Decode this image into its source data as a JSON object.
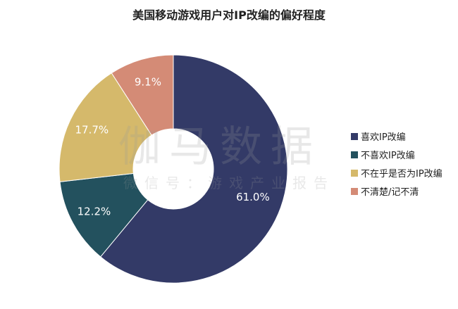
{
  "chart_data": {
    "type": "pie",
    "title": "美国移动游戏用户对IP改编的偏好程度",
    "categories": [
      "喜欢IP改编",
      "不喜欢IP改编",
      "不在乎是否为IP改编",
      "不清楚/记不清"
    ],
    "values": [
      61.0,
      12.2,
      17.7,
      9.1
    ],
    "value_labels": [
      "61.0%",
      "12.2%",
      "17.7%",
      "9.1%"
    ],
    "colors": [
      "#333a67",
      "#23515e",
      "#d5b96b",
      "#d48b76"
    ],
    "donut": true,
    "legend_position": "right"
  },
  "watermark": {
    "main": "伽马数据",
    "sub": "微信号：游戏产业报告"
  }
}
